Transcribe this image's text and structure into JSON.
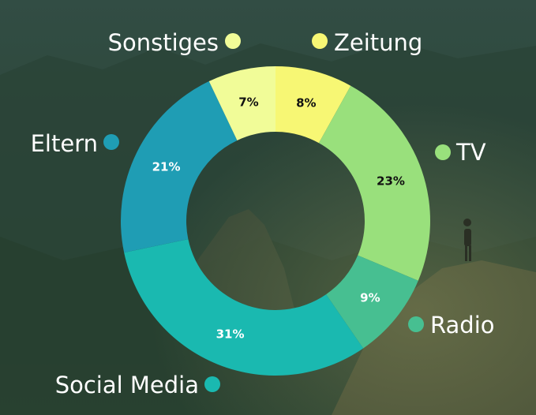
{
  "chart_data": {
    "type": "pie",
    "variant": "donut",
    "slices": [
      {
        "label": "Zeitung",
        "value": 8,
        "text": "8%",
        "color": "#f7f774",
        "text_color": "#111111"
      },
      {
        "label": "TV",
        "value": 23,
        "text": "23%",
        "color": "#99e07c",
        "text_color": "#111111"
      },
      {
        "label": "Radio",
        "value": 9,
        "text": "9%",
        "color": "#47bf91",
        "text_color": "#ffffff"
      },
      {
        "label": "Social Media",
        "value": 31,
        "text": "31%",
        "color": "#1ab9b0",
        "text_color": "#ffffff"
      },
      {
        "label": "Eltern",
        "value": 21,
        "text": "21%",
        "color": "#1f9db4",
        "text_color": "#ffffff"
      },
      {
        "label": "Sonstiges",
        "value": 7,
        "text": "7%",
        "color": "#f1fc98",
        "text_color": "#111111"
      }
    ],
    "legend_placement": "around chart (labels outside each slice)"
  },
  "background": {
    "description_color_top": "#2c4a3f",
    "description_color_bottom": "#46503a"
  }
}
